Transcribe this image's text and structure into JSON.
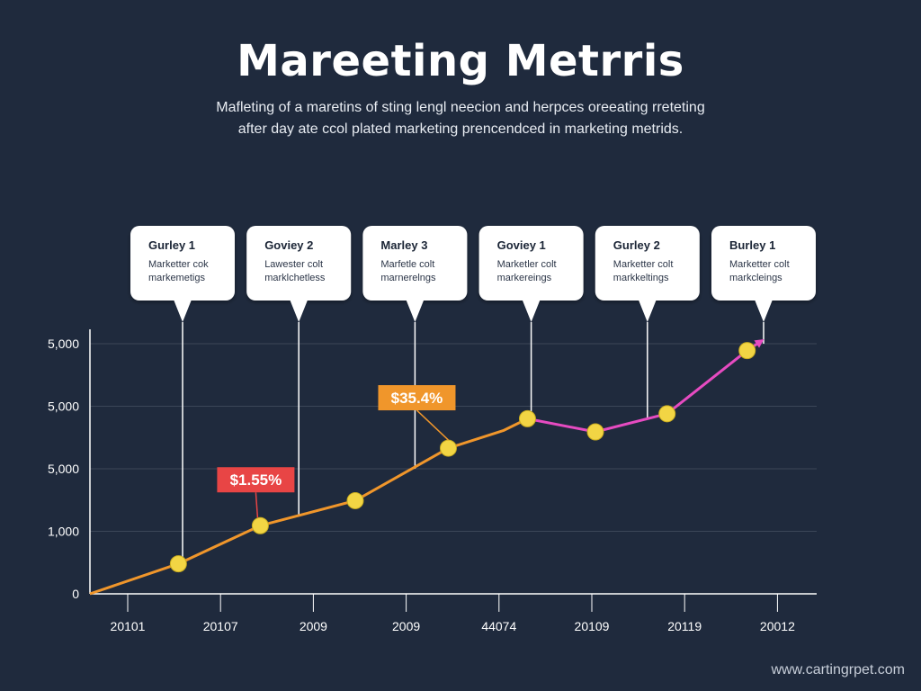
{
  "chart_data": {
    "type": "line",
    "title": "Mareeting Metrris",
    "subtitle_lines": [
      "Mafleting of a maretins of sting lengl neecion and herpces oreeating rreteting",
      "after day ate ccol plated marketing prencendced in marketing metrids."
    ],
    "x_tick_labels": [
      "20101",
      "20107",
      "2009",
      "2009",
      "44074",
      "20109",
      "20119",
      "20012"
    ],
    "y_tick_labels": [
      "0",
      "1,000",
      "5,000",
      "5,000",
      "5,000"
    ],
    "points": [
      {
        "x": 0.0,
        "y": 0.0
      },
      {
        "x": 0.95,
        "y": 0.48
      },
      {
        "x": 1.83,
        "y": 1.09
      },
      {
        "x": 2.85,
        "y": 1.49
      },
      {
        "x": 3.85,
        "y": 2.33
      },
      {
        "x": 4.44,
        "y": 2.61
      },
      {
        "x": 4.7,
        "y": 2.8
      },
      {
        "x": 5.43,
        "y": 2.59
      },
      {
        "x": 6.2,
        "y": 2.88
      },
      {
        "x": 7.06,
        "y": 3.89
      }
    ],
    "markers": [
      {
        "x": 0.95,
        "y": 0.48
      },
      {
        "x": 1.83,
        "y": 1.09
      },
      {
        "x": 2.85,
        "y": 1.49
      },
      {
        "x": 3.85,
        "y": 2.33
      },
      {
        "x": 4.7,
        "y": 2.8
      },
      {
        "x": 5.43,
        "y": 2.59
      },
      {
        "x": 6.2,
        "y": 2.88
      },
      {
        "x": 7.06,
        "y": 3.89
      }
    ],
    "series_colors": {
      "early": "#f0962b",
      "late": "#e64bc1",
      "marker": "#f2d544"
    },
    "data_labels": [
      {
        "text": "$1.55%",
        "color": "#e84545",
        "x": 1.83,
        "y": 1.09
      },
      {
        "text": "$35.4%",
        "color": "#f0962b",
        "x": 3.85,
        "y": 2.33
      }
    ],
    "callouts": [
      {
        "title": "Gurley 1",
        "line1": "Marketter cok",
        "line2": "markemetigs"
      },
      {
        "title": "Goviey 2",
        "line1": "Lawester colt",
        "line2": "marklchetless"
      },
      {
        "title": "Marley 3",
        "line1": "Marfetle colt",
        "line2": "marnerelngs"
      },
      {
        "title": "Goviey 1",
        "line1": "Marketler colt",
        "line2": "markereings"
      },
      {
        "title": "Gurley 2",
        "line1": "Marketter colt",
        "line2": "markkeltings"
      },
      {
        "title": "Burley 1",
        "line1": "Marketter colt",
        "line2": "markcleings"
      }
    ],
    "grid": true
  },
  "watermark": "www.cartingrpet.com"
}
